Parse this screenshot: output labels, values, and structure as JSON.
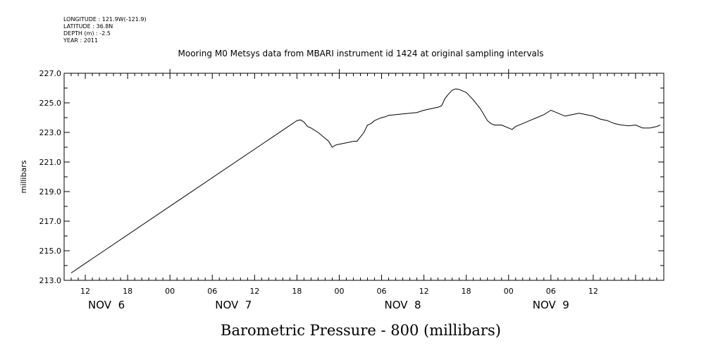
{
  "meta": {
    "longitude": "LONGITUDE : 121.9W(-121.9)",
    "latitude": "LATITUDE : 36.8N",
    "depth": "DEPTH (m) : -2.5",
    "year": "YEAR : 2011"
  },
  "chart_data": {
    "type": "line",
    "title": "Mooring M0 Metsys data from MBARI instrument id 1424 at original sampling intervals",
    "xlabel": "Barometric Pressure - 800 (millibars)",
    "ylabel": "millibars",
    "ylim": [
      213.0,
      227.0
    ],
    "xlim": [
      "2011-11-06T09:00",
      "2011-11-09T22:00"
    ],
    "y_ticks": [
      "213.0",
      "215.0",
      "217.0",
      "219.0",
      "221.0",
      "223.0",
      "225.0",
      "227.0"
    ],
    "x_ticks": [
      {
        "time": "2011-11-06T12:00",
        "label": "12"
      },
      {
        "time": "2011-11-06T18:00",
        "label": "18"
      },
      {
        "time": "2011-11-07T00:00",
        "label": "00"
      },
      {
        "time": "2011-11-07T06:00",
        "label": "06"
      },
      {
        "time": "2011-11-07T12:00",
        "label": "12"
      },
      {
        "time": "2011-11-07T18:00",
        "label": "18"
      },
      {
        "time": "2011-11-08T00:00",
        "label": "00"
      },
      {
        "time": "2011-11-08T06:00",
        "label": "06"
      },
      {
        "time": "2011-11-08T12:00",
        "label": "12"
      },
      {
        "time": "2011-11-08T18:00",
        "label": "18"
      },
      {
        "time": "2011-11-09T00:00",
        "label": "00"
      },
      {
        "time": "2011-11-09T06:00",
        "label": "06"
      },
      {
        "time": "2011-11-09T12:00",
        "label": "12"
      }
    ],
    "day_labels": [
      {
        "time": "2011-11-06T15:00",
        "label": "NOV  6"
      },
      {
        "time": "2011-11-07T09:00",
        "label": "NOV  7"
      },
      {
        "time": "2011-11-08T09:00",
        "label": "NOV  8"
      },
      {
        "time": "2011-11-09T06:00",
        "label": "NOV  9"
      }
    ],
    "grid": false,
    "series": [
      {
        "x": [
          "2011-11-06T10:00",
          "2011-11-07T18:00",
          "2011-11-07T18:30",
          "2011-11-07T19:00",
          "2011-11-07T19:30",
          "2011-11-07T20:00",
          "2011-11-07T21:00",
          "2011-11-07T22:00",
          "2011-11-07T22:30",
          "2011-11-07T23:00",
          "2011-11-07T23:30",
          "2011-11-08T00:00",
          "2011-11-08T01:00",
          "2011-11-08T02:00",
          "2011-11-08T02:30",
          "2011-11-08T03:00",
          "2011-11-08T03:30",
          "2011-11-08T04:00",
          "2011-11-08T04:30",
          "2011-11-08T05:00",
          "2011-11-08T05:30",
          "2011-11-08T06:00",
          "2011-11-08T06:30",
          "2011-11-08T07:00",
          "2011-11-08T08:00",
          "2011-11-08T09:00",
          "2011-11-08T10:00",
          "2011-11-08T11:00",
          "2011-11-08T12:00",
          "2011-11-08T13:00",
          "2011-11-08T13:30",
          "2011-11-08T14:00",
          "2011-11-08T14:30",
          "2011-11-08T15:00",
          "2011-11-08T15:30",
          "2011-11-08T16:00",
          "2011-11-08T16:30",
          "2011-11-08T17:00",
          "2011-11-08T18:00",
          "2011-11-08T19:00",
          "2011-11-08T20:00",
          "2011-11-08T21:00",
          "2011-11-08T21:30",
          "2011-11-08T22:00",
          "2011-11-08T23:00",
          "2011-11-09T00:00",
          "2011-11-09T00:30",
          "2011-11-09T01:00",
          "2011-11-09T02:00",
          "2011-11-09T03:00",
          "2011-11-09T04:00",
          "2011-11-09T05:00",
          "2011-11-09T06:00",
          "2011-11-09T06:30",
          "2011-11-09T07:00",
          "2011-11-09T08:00",
          "2011-11-09T09:00",
          "2011-11-09T10:00",
          "2011-11-09T11:00",
          "2011-11-09T12:00",
          "2011-11-09T13:00",
          "2011-11-09T14:00",
          "2011-11-09T15:00",
          "2011-11-09T16:00",
          "2011-11-09T17:00",
          "2011-11-09T18:00",
          "2011-11-09T19:00",
          "2011-11-09T20:00",
          "2011-11-09T21:00",
          "2011-11-09T21:30"
        ],
        "y": [
          213.5,
          223.8,
          223.85,
          223.7,
          223.4,
          223.3,
          223.0,
          222.6,
          222.4,
          222.0,
          222.15,
          222.2,
          222.3,
          222.4,
          222.4,
          222.7,
          223.0,
          223.5,
          223.6,
          223.8,
          223.9,
          224.0,
          224.05,
          224.15,
          224.2,
          224.25,
          224.3,
          224.35,
          224.5,
          224.6,
          224.65,
          224.7,
          224.8,
          225.3,
          225.6,
          225.85,
          225.95,
          225.9,
          225.7,
          225.2,
          224.6,
          223.8,
          223.6,
          223.5,
          223.5,
          223.3,
          223.2,
          223.4,
          223.6,
          223.8,
          224.0,
          224.2,
          224.5,
          224.4,
          224.3,
          224.1,
          224.2,
          224.3,
          224.2,
          224.1,
          223.9,
          223.8,
          223.6,
          223.5,
          223.45,
          223.5,
          223.3,
          223.3,
          223.4,
          223.5
        ]
      }
    ]
  }
}
